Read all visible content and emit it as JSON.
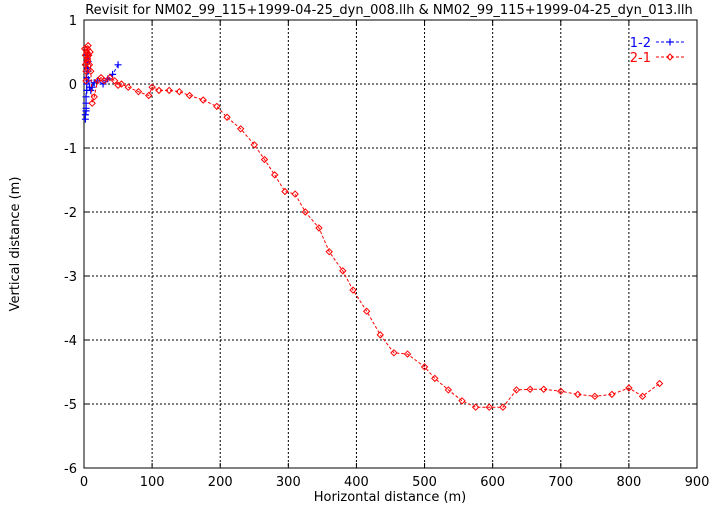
{
  "chart_data": {
    "type": "scatter",
    "title": "Revisit for NM02_99_115+1999-04-25_dyn_008.llh & NM02_99_115+1999-04-25_dyn_013.llh",
    "xlabel": "Horizontal distance (m)",
    "ylabel": "Vertical distance (m)",
    "xlim": [
      0,
      900
    ],
    "ylim": [
      -6,
      1
    ],
    "xticks": [
      0,
      100,
      200,
      300,
      400,
      500,
      600,
      700,
      800,
      900
    ],
    "yticks": [
      -6,
      -5,
      -4,
      -3,
      -2,
      -1,
      0,
      1
    ],
    "xtick_labels": [
      "0",
      "100",
      "200",
      "300",
      "400",
      "500",
      "600",
      "700",
      "800",
      "900"
    ],
    "ytick_labels": [
      "-6",
      "-5",
      "-4",
      "-3",
      "-2",
      "-1",
      "0",
      "1"
    ],
    "grid": true,
    "legend_position": "top-right",
    "series": [
      {
        "name": "1-2",
        "color": "#0000ff",
        "marker": "plus",
        "line": "dashed",
        "x": [
          2,
          2,
          3,
          3,
          3,
          3,
          4,
          4,
          4,
          5,
          5,
          6,
          6,
          7,
          8,
          10,
          12,
          15,
          20,
          28,
          35,
          42,
          50
        ],
        "y": [
          -0.55,
          -0.48,
          -0.42,
          -0.38,
          -0.3,
          -0.2,
          -0.1,
          0.0,
          0.1,
          0.25,
          0.45,
          0.35,
          0.2,
          0.05,
          -0.05,
          -0.1,
          -0.05,
          0.02,
          0.05,
          0.0,
          0.08,
          0.15,
          0.3
        ]
      },
      {
        "name": "2-1",
        "color": "#ff0000",
        "marker": "diamond",
        "line": "dashed",
        "x": [
          1,
          2,
          2,
          3,
          3,
          4,
          4,
          5,
          5,
          6,
          7,
          8,
          9,
          10,
          12,
          15,
          20,
          25,
          30,
          38,
          45,
          50,
          55,
          65,
          80,
          95,
          100,
          110,
          125,
          140,
          155,
          175,
          195,
          210,
          230,
          250,
          265,
          280,
          295,
          310,
          325,
          345,
          360,
          380,
          395,
          415,
          435,
          455,
          475,
          500,
          515,
          535,
          555,
          575,
          595,
          615,
          635,
          655,
          675,
          700,
          725,
          750,
          775,
          800,
          820,
          845
        ],
        "y": [
          0.55,
          0.45,
          0.3,
          0.2,
          0.05,
          0.5,
          0.35,
          0.55,
          0.4,
          0.6,
          0.45,
          0.3,
          0.5,
          0.2,
          -0.3,
          -0.2,
          0.05,
          0.1,
          0.05,
          0.1,
          0.05,
          -0.02,
          0.0,
          -0.05,
          -0.12,
          -0.18,
          -0.05,
          -0.1,
          -0.1,
          -0.12,
          -0.18,
          -0.25,
          -0.35,
          -0.52,
          -0.7,
          -0.95,
          -1.18,
          -1.42,
          -1.68,
          -1.72,
          -2.0,
          -2.25,
          -2.62,
          -2.92,
          -3.22,
          -3.55,
          -3.92,
          -4.2,
          -4.22,
          -4.42,
          -4.6,
          -4.78,
          -4.95,
          -5.05,
          -5.05,
          -5.05,
          -4.78,
          -4.77,
          -4.77,
          -4.8,
          -4.85,
          -4.88,
          -4.85,
          -4.75,
          -4.88,
          -4.68
        ]
      }
    ]
  }
}
